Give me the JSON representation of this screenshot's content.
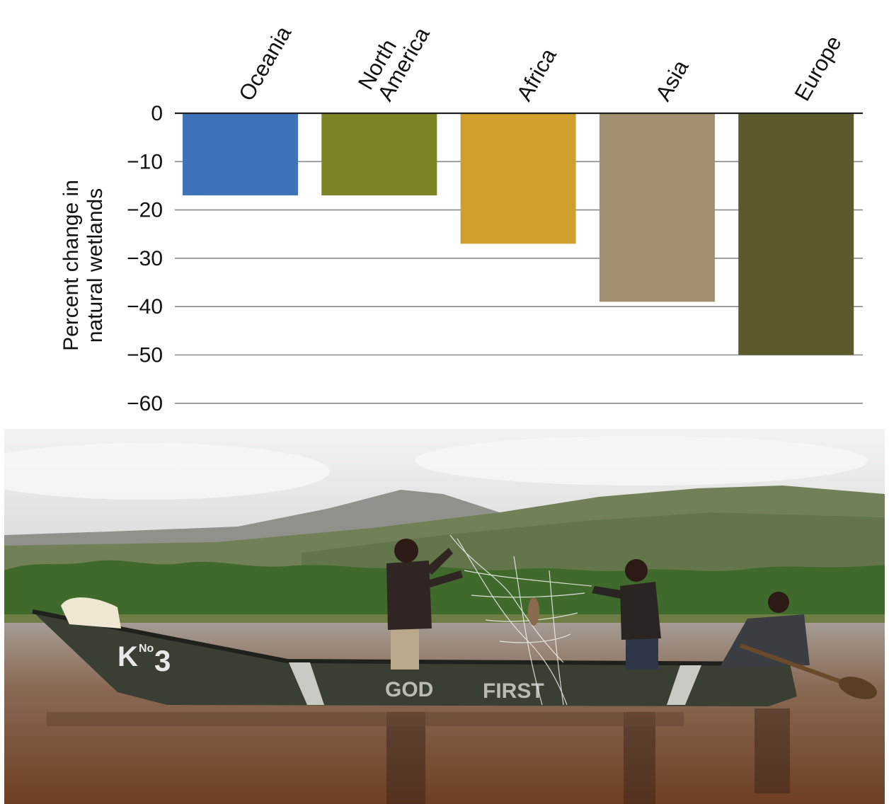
{
  "chart_data": {
    "type": "bar",
    "title": "",
    "xlabel": "",
    "ylabel": [
      "Percent change in",
      "natural wetlands"
    ],
    "categories": [
      "Oceania",
      "North America",
      "Africa",
      "Asia",
      "Europe"
    ],
    "category_label_lines": [
      [
        "Oceania"
      ],
      [
        "North",
        "America"
      ],
      [
        "Africa"
      ],
      [
        "Asia"
      ],
      [
        "Europe"
      ]
    ],
    "values": [
      -17,
      -17,
      -27,
      -39,
      -50
    ],
    "colors": [
      "#3e73ba",
      "#7c8325",
      "#d09f2c",
      "#a28f70",
      "#5c5a2c"
    ],
    "yticks": [
      0,
      -10,
      -20,
      -30,
      -40,
      -50,
      -60
    ],
    "ytick_labels": [
      "0",
      "−10",
      "−20",
      "−30",
      "−40",
      "−50",
      "−60"
    ],
    "ylim": [
      -60,
      0
    ],
    "grid": true,
    "category_labels_position": "top, rotated"
  },
  "photo": {
    "subject": "fishermen-in-canoe-on-lake",
    "boat_text_bow": "K",
    "boat_text_number": "3",
    "boat_text_superscript": "No",
    "boat_text_side_1": "GOD",
    "boat_text_side_2": "FIRST",
    "colors": {
      "sky": "#e4e6e5",
      "mountain": "#8c9088",
      "hills": "#6f7f5a",
      "trees": "#3f6a2c",
      "water": "#7d4a2e",
      "boat": "#3a3f33"
    }
  }
}
